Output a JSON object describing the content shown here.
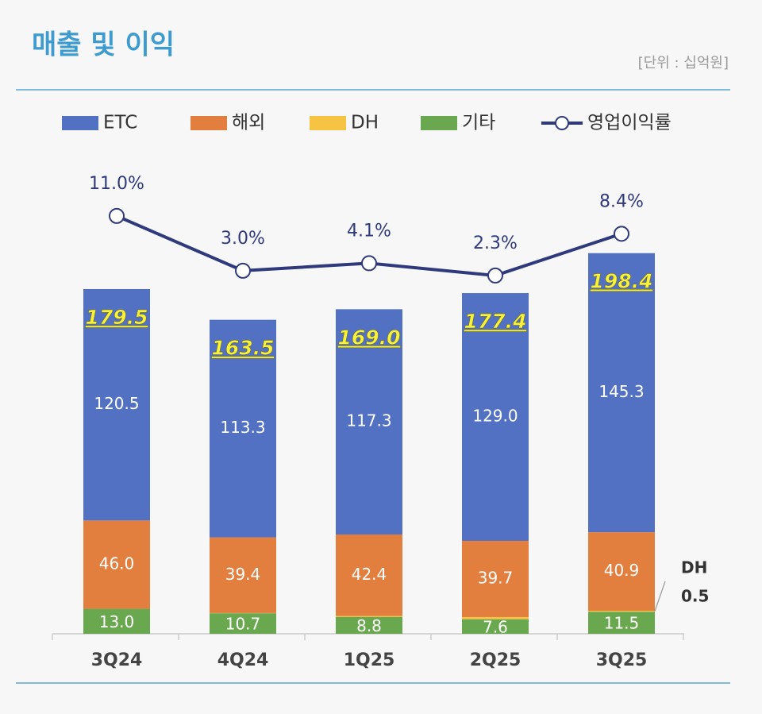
{
  "chart_data": {
    "type": "bar",
    "title": "매출 및 이익",
    "subtitle": "[단위 : 십억원]",
    "categories": [
      "3Q24",
      "4Q24",
      "1Q25",
      "2Q25",
      "3Q25"
    ],
    "stacked": true,
    "ylim": [
      0,
      200
    ],
    "y2lim": [
      -50,
      15
    ],
    "series": [
      {
        "name": "ETC",
        "color": "#5371c2",
        "values": [
          120.5,
          113.3,
          117.3,
          129.0,
          145.3
        ],
        "value_labels": [
          "120.5",
          "113.3",
          "117.3",
          "129.0",
          "145.3"
        ]
      },
      {
        "name": "해외",
        "color": "#e27e3e",
        "values": [
          46.0,
          39.4,
          42.4,
          39.7,
          40.9
        ],
        "value_labels": [
          "46.0",
          "39.4",
          "42.4",
          "39.7",
          "40.9"
        ]
      },
      {
        "name": "DH",
        "color": "#f6c343",
        "values": [
          0,
          0.1,
          0.5,
          1.1,
          0.5
        ],
        "value_labels": [
          null,
          null,
          null,
          null,
          "0.5"
        ]
      },
      {
        "name": "기타",
        "color": "#6aa84f",
        "values": [
          13.0,
          10.7,
          8.8,
          7.6,
          11.5
        ],
        "value_labels": [
          "13.0",
          "10.7",
          "8.8",
          "7.6",
          "11.5"
        ]
      },
      {
        "name": "영업이익률",
        "type": "line",
        "axis": "y2",
        "color": "#2f3a7c",
        "values": [
          11.0,
          3.0,
          4.1,
          2.3,
          8.4
        ],
        "value_labels": [
          "11.0%",
          "3.0%",
          "4.1%",
          "2.3%",
          "8.4%"
        ]
      }
    ],
    "totals": {
      "values": [
        179.5,
        163.5,
        169.0,
        177.4,
        198.4
      ],
      "value_labels": [
        "179.5",
        "163.5",
        "169.0",
        "177.4",
        "198.4"
      ]
    },
    "annotation": "DH"
  }
}
